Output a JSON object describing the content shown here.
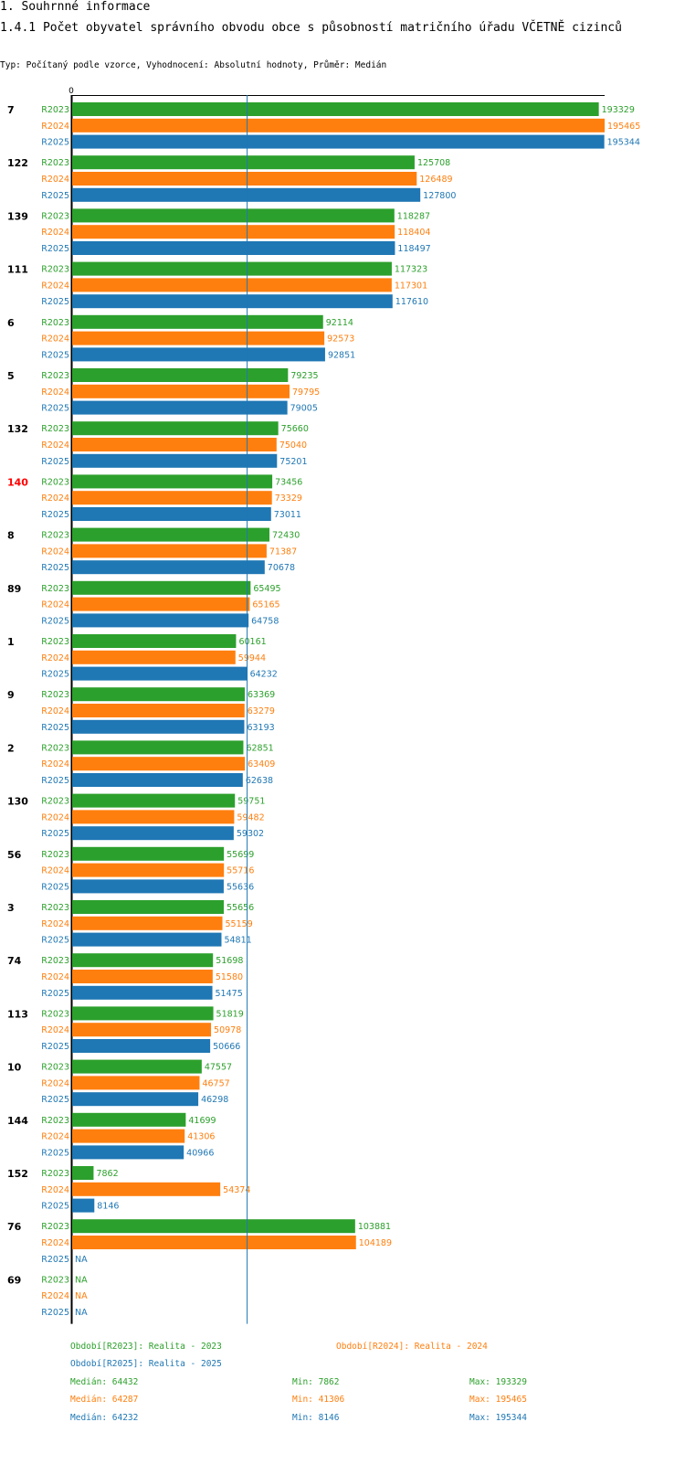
{
  "header": {
    "section": "1. Souhrnné informace",
    "title": "1.4.1 Počet obyvatel správního obvodu obce s působností matričního úřadu VČETNĚ cizinců",
    "subtitle": "Typ: Počítaný podle vzorce, Vyhodnocení: Absolutní hodnoty, Průměr: Medián"
  },
  "colors": {
    "R2023": "#2ca02c",
    "R2024": "#ff7f0e",
    "R2025": "#1f77b4",
    "highlight": "#ff0000",
    "median_line": "#1f77b4"
  },
  "chart_data": {
    "type": "bar",
    "orientation": "horizontal",
    "x_axis_tick": "0",
    "xlim": [
      0,
      195465
    ],
    "reference_line": {
      "label": "Medián",
      "value": 64232
    },
    "series_names": [
      "R2023",
      "R2024",
      "R2025"
    ],
    "groups": [
      {
        "label": "7",
        "values": [
          193329,
          195465,
          195344
        ]
      },
      {
        "label": "122",
        "values": [
          125708,
          126489,
          127800
        ]
      },
      {
        "label": "139",
        "values": [
          118287,
          118404,
          118497
        ]
      },
      {
        "label": "111",
        "values": [
          117323,
          117301,
          117610
        ]
      },
      {
        "label": "6",
        "values": [
          92114,
          92573,
          92851
        ]
      },
      {
        "label": "5",
        "values": [
          79235,
          79795,
          79005
        ]
      },
      {
        "label": "132",
        "values": [
          75660,
          75040,
          75201
        ]
      },
      {
        "label": "140",
        "highlight": true,
        "values": [
          73456,
          73329,
          73011
        ]
      },
      {
        "label": "8",
        "values": [
          72430,
          71387,
          70678
        ]
      },
      {
        "label": "89",
        "values": [
          65495,
          65165,
          64758
        ]
      },
      {
        "label": "1",
        "values": [
          60161,
          59944,
          64232
        ]
      },
      {
        "label": "9",
        "values": [
          63369,
          63279,
          63193
        ]
      },
      {
        "label": "2",
        "values": [
          62851,
          63409,
          62638
        ]
      },
      {
        "label": "130",
        "values": [
          59751,
          59482,
          59302
        ]
      },
      {
        "label": "56",
        "values": [
          55699,
          55716,
          55636
        ]
      },
      {
        "label": "3",
        "values": [
          55656,
          55159,
          54811
        ]
      },
      {
        "label": "74",
        "values": [
          51698,
          51580,
          51475
        ]
      },
      {
        "label": "113",
        "values": [
          51819,
          50978,
          50666
        ]
      },
      {
        "label": "10",
        "values": [
          47557,
          46757,
          46298
        ]
      },
      {
        "label": "144",
        "values": [
          41699,
          41306,
          40966
        ]
      },
      {
        "label": "152",
        "values": [
          7862,
          54374,
          8146
        ]
      },
      {
        "label": "76",
        "values": [
          103881,
          104189,
          null
        ]
      },
      {
        "label": "69",
        "values": [
          null,
          null,
          null
        ]
      }
    ],
    "na_label": "NA"
  },
  "legend": {
    "periods": [
      "Období[R2023]: Realita - 2023",
      "Období[R2024]: Realita - 2024",
      "Období[R2025]: Realita - 2025"
    ],
    "stats": [
      {
        "median": "Medián: 64432",
        "min": "Min: 7862",
        "max": "Max: 193329"
      },
      {
        "median": "Medián: 64287",
        "min": "Min: 41306",
        "max": "Max: 195465"
      },
      {
        "median": "Medián: 64232",
        "min": "Min: 8146",
        "max": "Max: 195344"
      }
    ]
  }
}
